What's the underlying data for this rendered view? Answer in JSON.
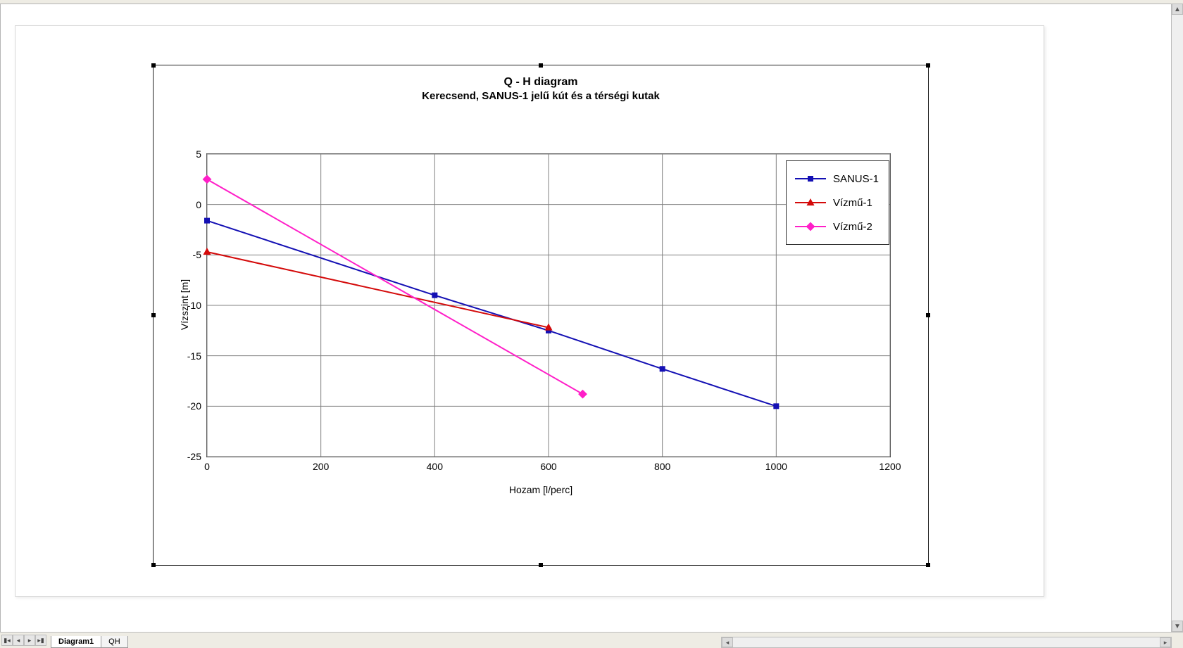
{
  "app": {
    "tabs": [
      "Diagram1",
      "QH"
    ],
    "active_tab_index": 0
  },
  "chart": {
    "title_line1": "Q - H diagram",
    "title_line2": "Kerecsend, SANUS-1 jelű kút és a térségi kutak",
    "title_fontsize": 16,
    "xlabel": "Hozam [l/perc]",
    "ylabel": "Vízszint [m]",
    "label_fontsize": 14,
    "background_color": "#ffffff",
    "grid_color": "#808080",
    "grid_width": 1,
    "axis_color": "#333333",
    "xlim": [
      0,
      1200
    ],
    "ylim": [
      -25,
      5
    ],
    "xticks": [
      0,
      200,
      400,
      600,
      800,
      1000,
      1200
    ],
    "yticks": [
      -25,
      -20,
      -15,
      -10,
      -5,
      0,
      5
    ],
    "legend": {
      "position": "top-right-inside",
      "border_color": "#333333",
      "bg_color": "#ffffff",
      "fontsize": 15
    },
    "series": [
      {
        "name": "SANUS-1",
        "color": "#1410b4",
        "line_width": 2,
        "marker": "square",
        "marker_size": 7,
        "x": [
          0,
          400,
          600,
          800,
          1000
        ],
        "y": [
          -1.6,
          -9.0,
          -12.5,
          -16.3,
          -20.0
        ]
      },
      {
        "name": "Vízmű-1",
        "color": "#d40a0a",
        "line_width": 2,
        "marker": "triangle",
        "marker_size": 8,
        "x": [
          0,
          600
        ],
        "y": [
          -4.7,
          -12.2
        ]
      },
      {
        "name": "Vízmű-2",
        "color": "#ff1fc8",
        "line_width": 2,
        "marker": "diamond",
        "marker_size": 8,
        "x": [
          0,
          660
        ],
        "y": [
          2.5,
          -18.8
        ]
      }
    ]
  }
}
